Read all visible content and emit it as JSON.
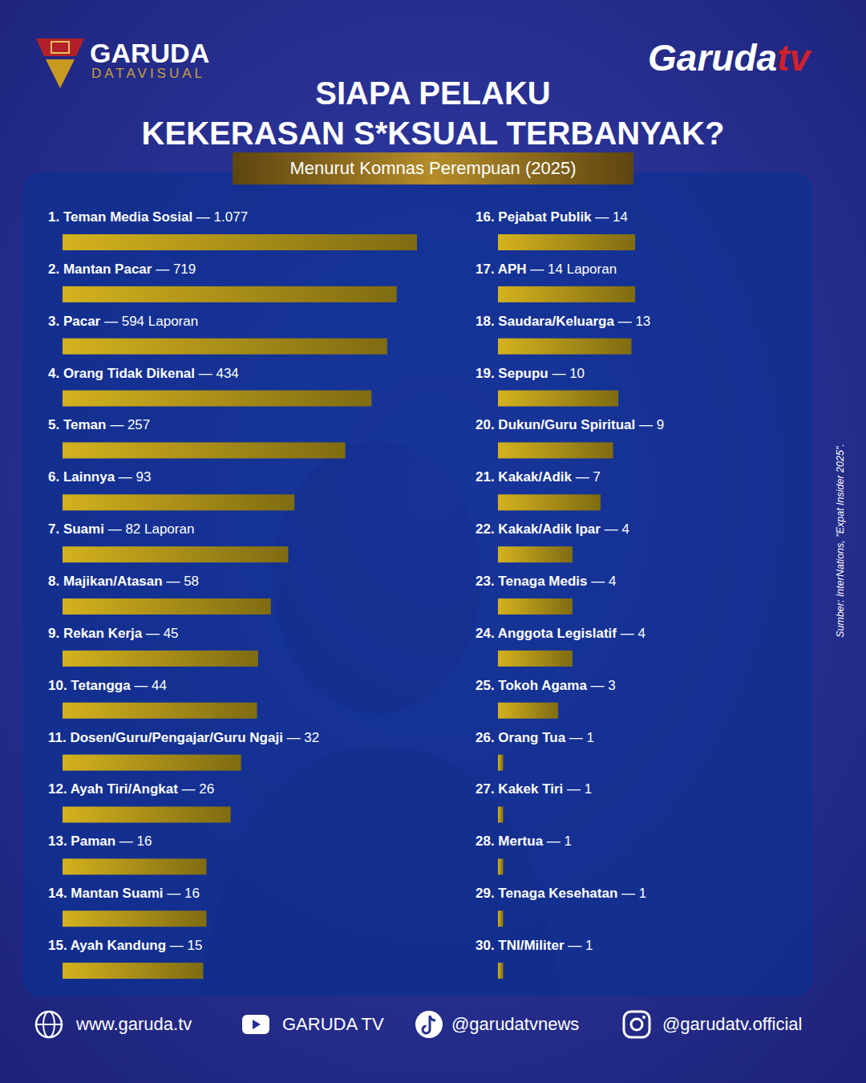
{
  "branding": {
    "logo_title": "GARUDA",
    "logo_subtitle": "DATAVISUAL",
    "channel_name": "Garuda",
    "channel_suffix": "tv"
  },
  "chart_data": {
    "type": "bar",
    "orientation": "horizontal",
    "title": [
      "SIAPA PELAKU",
      "KEKERASAN S*KSUAL TERBANYAK?"
    ],
    "subtitle": "Menurut Komnas Perempuan (2025)",
    "source": "Sumber: InterNations, \"Expat Insider 2025\".",
    "label_separator": "—",
    "categories": [
      "1. Teman Media Sosial",
      "2. Mantan Pacar",
      "3. Pacar",
      "4. Orang Tidak Dikenal",
      "5. Teman",
      "6. Lainnya",
      "7. Suami",
      "8. Majikan/Atasan",
      "9. Rekan Kerja",
      "10. Tetangga",
      "11. Dosen/Guru/Pengajar/Guru Ngaji",
      "12. Ayah Tiri/Angkat",
      "13. Paman",
      "14. Mantan Suami",
      "15. Ayah Kandung",
      "16. Pejabat Publik",
      "17. APH",
      "18. Saudara/Keluarga",
      "19. Sepupu",
      "20. Dukun/Guru Spiritual",
      "21. Kakak/Adik",
      "22. Kakak/Adik Ipar",
      "23. Tenaga Medis",
      "24. Anggota Legislatif",
      "25. Tokoh Agama",
      "26. Orang Tua",
      "27. Kakek Tiri",
      "28. Mertua",
      "29. Tenaga Kesehatan",
      "30. TNI/Militer"
    ],
    "values": [
      1077,
      719,
      594,
      434,
      257,
      93,
      82,
      58,
      45,
      44,
      32,
      26,
      16,
      16,
      15,
      14,
      14,
      13,
      10,
      9,
      7,
      4,
      4,
      4,
      3,
      1,
      1,
      1,
      1,
      1
    ],
    "value_labels": [
      "1.077",
      "719",
      "594 Laporan",
      "434",
      "257",
      "93",
      "82 Laporan",
      "58",
      "45",
      "44",
      "32",
      "26",
      "16",
      "16",
      "15",
      "14",
      "14 Laporan",
      "13",
      "10",
      "9",
      "7",
      "4",
      "4",
      "4",
      "3",
      "1",
      "1",
      "1",
      "1",
      "1"
    ],
    "color": "#d4b21e",
    "xlim": [
      0.9,
      1077
    ],
    "log": "x",
    "grid": false,
    "data_labels": true,
    "tick_labels": false
  },
  "footer": {
    "website": "www.garuda.tv",
    "youtube": "GARUDA TV",
    "tiktok": "@garudatvnews",
    "instagram": "@garudatv.official"
  }
}
